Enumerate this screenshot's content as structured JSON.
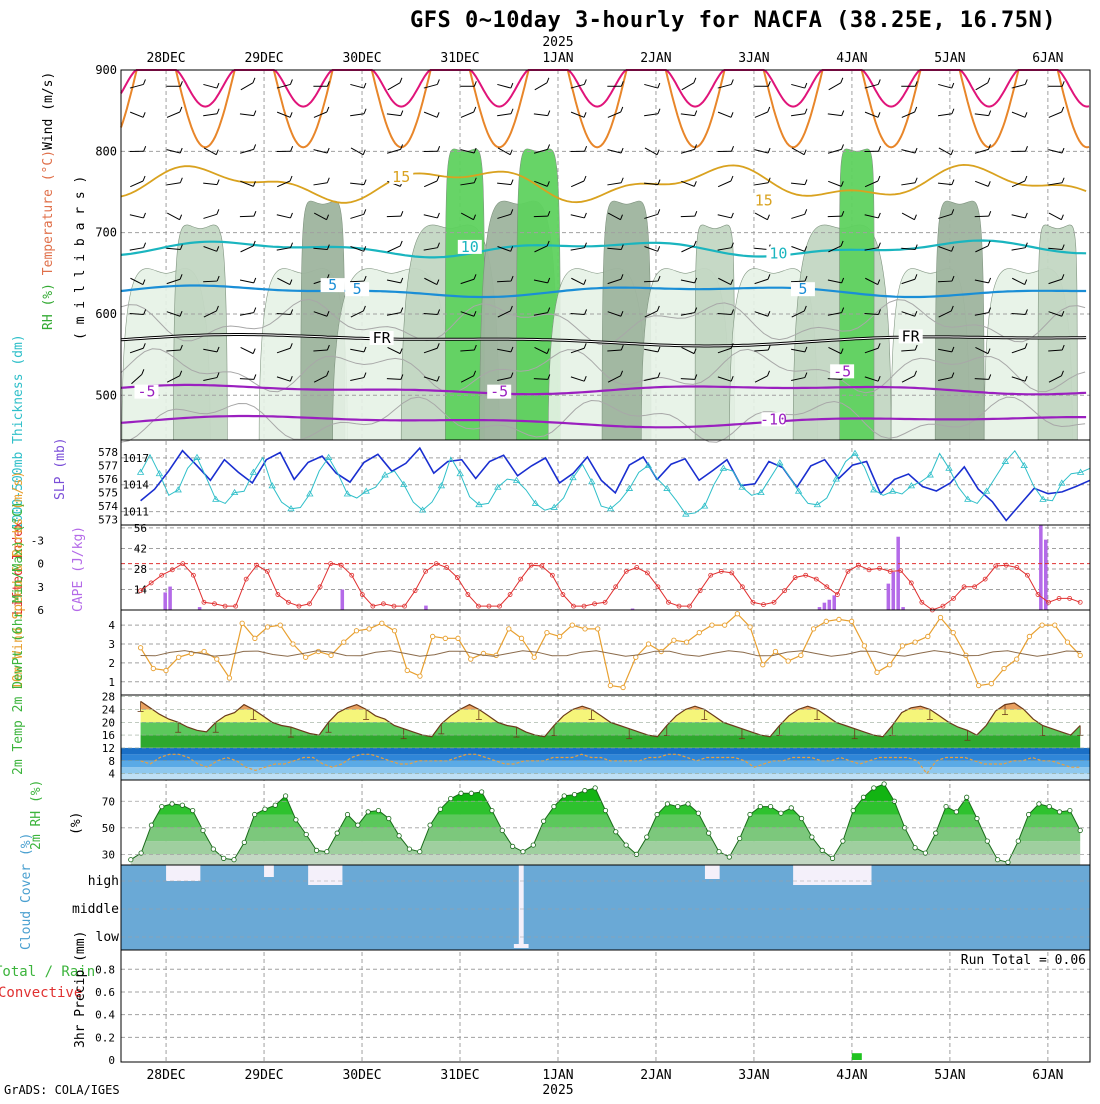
{
  "page": {
    "title": "GFS 0~10day 3-hourly for NACFA (38.25E, 16.75N)",
    "credit": "GrADS: COLA/IGES"
  },
  "colors": {
    "frame": "#000000",
    "grid": "#a0a0a0",
    "purple": "#9a1fbf",
    "cyan": "#1ab5bf",
    "skyblue": "#1a8ed6",
    "orange": "#e8862a",
    "gold": "#d9a21f",
    "magenta": "#e0147a",
    "rh_light": "#e6f2e6",
    "rh_mid": "#c3d7c3",
    "rh_dark": "#9fb59f",
    "rh_green": "#5fd25f",
    "slp": "#1a2fd0",
    "thick": "#2fbfc9",
    "lifted": "#e03030",
    "cape": "#b46ae8",
    "wind10": "#e8a030",
    "temp_green": "#3cb43c",
    "temp_yellow": "#f5f57a",
    "dew_blue": "#2a8ed8",
    "cloud": "#6aa9d6",
    "precip": "#1fc21f"
  },
  "chart_data": [
    {
      "type": "line",
      "title": "",
      "ylabel_parts": [
        "RH (%)",
        "Temperature (°C)",
        "Wind (m/s)"
      ],
      "ylabel_units": "( m i l l i b a r s )",
      "y_ticks": [
        500,
        600,
        700,
        800,
        900
      ],
      "ylim": [
        445,
        900
      ],
      "date_labels_top": [
        "28DEC",
        "29DEC",
        "30DEC",
        "31DEC",
        "1JAN",
        "2JAN",
        "3JAN",
        "4JAN",
        "5JAN",
        "6JAN"
      ],
      "year_label": "2025",
      "contour_labels": [
        {
          "text": "-10",
          "t": 6.2,
          "p": 468,
          "color": "purple"
        },
        {
          "text": "-5",
          "t": -0.2,
          "p": 502,
          "color": "purple"
        },
        {
          "text": "-5",
          "t": 3.4,
          "p": 502,
          "color": "purple"
        },
        {
          "text": "-5",
          "t": 6.9,
          "p": 527,
          "color": "purple"
        },
        {
          "text": "FR",
          "t": 2.2,
          "p": 568,
          "color": "black"
        },
        {
          "text": "FR",
          "t": 7.6,
          "p": 570,
          "color": "black"
        },
        {
          "text": "5",
          "t": 1.95,
          "p": 628,
          "color": "skyblue"
        },
        {
          "text": "5",
          "t": 6.5,
          "p": 628,
          "color": "skyblue"
        },
        {
          "text": "10",
          "t": 3.1,
          "p": 680,
          "color": "cyan"
        },
        {
          "text": "10",
          "t": 6.25,
          "p": 672,
          "color": "cyan"
        },
        {
          "text": "15",
          "t": 2.4,
          "p": 766,
          "color": "gold"
        },
        {
          "text": "15",
          "t": 6.1,
          "p": 737,
          "color": "gold"
        },
        {
          "text": "5",
          "t": 1.7,
          "p": 633,
          "color": "skyblue"
        }
      ]
    },
    {
      "type": "line",
      "ylabel_left": "1000-500mb Thickness (dm)",
      "ylabel_right": "SLP (mb)",
      "y_ticks_left": [
        573,
        574,
        575,
        576,
        577,
        578
      ],
      "y_ticks_right": [
        1011,
        1014,
        1017
      ],
      "series": [
        {
          "name": "SLP (mb)",
          "color": "slp",
          "values": [
            1012.2,
            1013.5,
            1015.5,
            1017.8,
            1016.2,
            1014.5,
            1016.8,
            1015.4,
            1014.2,
            1016.8,
            1017.6,
            1014.6,
            1016.5,
            1017.2,
            1015.3,
            1014.3,
            1016.5,
            1017.4,
            1015.5,
            1016.4,
            1018.1,
            1015.3,
            1016.6,
            1016.8,
            1014.7,
            1016.6,
            1017.3,
            1015.0,
            1016.1,
            1017.0,
            1014.2,
            1015.3,
            1017.1,
            1014.5,
            1013.1,
            1016.2,
            1017.1,
            1014.6,
            1016.3,
            1016.9,
            1014.5,
            1015.6,
            1016.8,
            1013.9,
            1014.1,
            1016.6,
            1015.9,
            1013.7,
            1016.1,
            1016.8,
            1014.7,
            1016.2,
            1016.6,
            1013.0,
            1014.6,
            1015.2,
            1013.8,
            1013.3,
            1014.2,
            1016.0,
            1013.5,
            1012.1,
            1010.0,
            1011.8,
            1013.6,
            1013.0,
            1013.2,
            1013.8,
            1014.5
          ]
        },
        {
          "name": "1000-500mb Thickness (dm)",
          "color": "thick",
          "values": [
            576.5,
            577.8,
            576.4,
            574.8,
            575.2,
            576.8,
            577.6,
            576.1,
            574.5,
            574.2,
            575.0,
            575.1,
            576.5,
            577.6,
            575.5,
            574.3,
            573.8,
            573.9,
            574.9,
            576.6,
            577.6,
            576.4,
            574.9,
            574.6,
            575.1,
            575.4,
            576.3,
            576.6,
            575.6,
            574.3,
            573.7,
            574.3,
            575.5,
            577.6,
            576.4,
            574.7,
            574.1,
            574.2,
            575.4,
            576.0,
            575.9,
            575.2,
            574.2,
            573.7,
            573.9,
            574.6,
            576.1,
            577.1,
            575.8,
            574.0,
            573.8,
            574.4,
            575.3,
            576.5,
            577.0,
            576.0,
            575.3,
            574.4,
            573.4,
            573.5,
            574.0,
            575.6,
            576.8,
            576.6,
            575.4,
            574.8,
            575.0,
            576.1,
            577.2,
            576.2,
            575.1,
            574.2,
            574.1,
            574.6,
            576.0,
            577.3,
            577.9,
            576.9,
            575.2,
            574.8,
            575.1,
            574.9,
            575.5,
            575.8,
            576.3,
            577.9,
            576.8,
            575.4,
            574.5,
            574.2,
            575.1,
            576.2,
            577.3,
            578.1,
            577.0,
            575.5,
            574.5,
            574.4,
            575.7,
            576.4,
            576.5,
            576.8
          ]
        }
      ]
    },
    {
      "type": "bar",
      "ylabel_left": "Lifted Index",
      "ylabel_right": "CAPE (J/kg)",
      "y_ticks_left": [
        "-3",
        "0",
        "3",
        "6"
      ],
      "y_ticks_right": [
        14,
        28,
        42,
        56
      ],
      "cape_values": [
        0,
        0,
        0,
        0,
        0,
        12,
        16,
        0,
        0,
        0,
        0,
        0,
        2,
        0,
        0,
        0,
        0,
        0,
        0,
        0,
        0,
        0,
        0,
        0,
        0,
        0,
        0,
        0,
        0,
        0,
        0,
        0,
        0,
        0,
        0,
        0,
        0,
        0,
        0,
        0,
        0,
        14,
        0,
        0,
        0,
        0,
        0,
        0,
        0,
        0,
        0,
        0,
        0,
        0,
        0,
        0,
        0,
        0,
        3,
        0,
        0,
        0,
        0,
        0,
        0,
        0,
        0,
        0,
        0,
        0,
        0,
        0,
        0,
        0,
        0,
        0,
        0,
        0,
        0,
        0,
        0,
        0,
        0,
        0,
        0,
        0,
        0,
        0,
        0,
        0,
        0,
        0,
        0,
        0,
        0,
        0,
        0,
        0,
        0,
        0,
        1,
        0,
        0,
        0,
        0,
        0,
        0,
        0,
        0,
        0,
        0,
        0,
        0,
        0,
        0,
        0,
        0,
        0,
        0,
        0,
        0,
        0,
        0,
        0,
        0,
        0,
        0,
        0,
        0,
        0,
        0,
        0,
        0,
        0,
        0,
        0,
        0,
        0,
        2,
        5,
        7,
        10,
        0,
        0,
        0,
        0,
        0,
        0,
        0,
        0,
        0,
        0,
        18,
        26,
        50,
        2,
        0,
        0,
        0,
        0,
        0,
        0,
        0,
        0,
        0,
        0,
        0,
        0,
        0,
        0,
        0,
        0,
        0,
        0,
        0,
        0,
        0,
        0,
        0,
        0,
        0,
        0,
        0,
        58,
        48,
        0,
        0,
        0,
        0,
        0,
        0,
        0
      ],
      "lifted_values": [
        3.5,
        2.5,
        1.5,
        0.8,
        0,
        1.5,
        5,
        5.2,
        5.5,
        5.5,
        2,
        0.2,
        1,
        4,
        5,
        5.5,
        5.2,
        3,
        0,
        0.2,
        1.5,
        4,
        5.5,
        5.2,
        5.5,
        5.5,
        3.5,
        1,
        0,
        0.5,
        1.8,
        4,
        5.5,
        5.5,
        5.5,
        4,
        2,
        0.2,
        0.3,
        1.5,
        4,
        5.5,
        5.5,
        5.2,
        5,
        3,
        1,
        0.5,
        1.2,
        3,
        5,
        5.5,
        5.5,
        3.5,
        1.5,
        1,
        1.2,
        3,
        5,
        5.3,
        5,
        3.5,
        1.8,
        1.5,
        2,
        3,
        4,
        1,
        0.2,
        0.8,
        0.6,
        1,
        0.9,
        2.5,
        5,
        6,
        5.5,
        4.5,
        3,
        3,
        2,
        0.3,
        0.2,
        0.5,
        1.5,
        4,
        5,
        4.5,
        4.5,
        5
      ],
      "dashed_line": 0
    },
    {
      "type": "line",
      "ylabel_left": "10m Wind Speed & Barbs (m/s)",
      "y_ticks": [
        1,
        2,
        3,
        4
      ],
      "values": [
        2.8,
        1.7,
        1.6,
        2.3,
        2.5,
        2.6,
        2.2,
        1.2,
        4.1,
        3.3,
        3.9,
        4.0,
        3.0,
        2.3,
        2.6,
        2.4,
        3.1,
        3.7,
        3.8,
        4.1,
        3.7,
        1.6,
        1.3,
        3.4,
        3.3,
        3.3,
        2.2,
        2.5,
        2.4,
        3.8,
        3.3,
        2.3,
        3.6,
        3.4,
        4.0,
        3.8,
        3.8,
        0.8,
        0.7,
        2.3,
        3.0,
        2.6,
        3.2,
        3.1,
        3.6,
        4.0,
        4.0,
        4.6,
        3.9,
        1.9,
        2.6,
        2.1,
        2.4,
        3.8,
        4.2,
        4.3,
        4.2,
        2.9,
        1.5,
        1.9,
        2.9,
        3.1,
        3.4,
        4.4,
        3.6,
        2.4,
        0.8,
        0.9,
        1.7,
        2.2,
        3.4,
        4.0,
        4.0,
        3.1,
        2.4
      ]
    },
    {
      "type": "area",
      "ylabel_left": "2m Temp 2m DewPt (6hr Min/Max) (°C)",
      "y_ticks": [
        4,
        8,
        12,
        16,
        20,
        24,
        28
      ],
      "temp": [
        26.5,
        24.5,
        22.5,
        21,
        20,
        18.5,
        17.5,
        17,
        20,
        22,
        23,
        25.5,
        24,
        22,
        20,
        19,
        18.5,
        17.5,
        16.5,
        16,
        20,
        23,
        24.5,
        25.5,
        24,
        22,
        21,
        19,
        18,
        17,
        16,
        15.5,
        19.5,
        22,
        24,
        25.5,
        24,
        22,
        20,
        19,
        18.5,
        17,
        16,
        15.5,
        19,
        22,
        24,
        25,
        24,
        22,
        20,
        19,
        18,
        17,
        16,
        15.5,
        19,
        22,
        24,
        25,
        24,
        22,
        20,
        19,
        18,
        17,
        16,
        15.5,
        19,
        22,
        24,
        25,
        24,
        22,
        20,
        19,
        18,
        17,
        16,
        15.5,
        19,
        23,
        24.5,
        25,
        24,
        22,
        20,
        18.5,
        17.5,
        16,
        19,
        23.5,
        25.5,
        26,
        24,
        21,
        19,
        18,
        17,
        16,
        19
      ],
      "dewpt": [
        8,
        7,
        9,
        10,
        10,
        9,
        7,
        6,
        8,
        9,
        8,
        6,
        5,
        6,
        7,
        7,
        8,
        9,
        9,
        7,
        6,
        7,
        9,
        10,
        10,
        9,
        8,
        7,
        7,
        8,
        8,
        8,
        8,
        9,
        10,
        10,
        9,
        8,
        7,
        7,
        8,
        8,
        8,
        9,
        9,
        9,
        10,
        9,
        9,
        8,
        8,
        8,
        8,
        9,
        9,
        10,
        10,
        9,
        8,
        9,
        9,
        9,
        9,
        8,
        6,
        7,
        8,
        8,
        9,
        9,
        9,
        8,
        8,
        9,
        8,
        7,
        8,
        9,
        9,
        9,
        9,
        8,
        4,
        8,
        9,
        9,
        9,
        8,
        7,
        7,
        7,
        8,
        8,
        9,
        8,
        8,
        7,
        6,
        6
      ]
    },
    {
      "type": "area",
      "ylabel_left": "2m RH (%)",
      "y_ticks": [
        30,
        50,
        70
      ],
      "values": [
        26,
        31,
        52,
        66,
        68,
        67,
        63,
        48,
        34,
        27,
        26,
        39,
        60,
        64,
        67,
        74,
        56,
        45,
        33,
        32,
        46,
        60,
        52,
        62,
        63,
        57,
        44,
        34,
        32,
        52,
        64,
        72,
        76,
        76,
        77,
        63,
        48,
        36,
        32,
        37,
        55,
        66,
        74,
        75,
        78,
        80,
        63,
        47,
        37,
        30,
        43,
        60,
        68,
        66,
        68,
        61,
        46,
        32,
        28,
        42,
        60,
        66,
        66,
        61,
        65,
        57,
        43,
        33,
        27,
        40,
        63,
        73,
        80,
        83,
        70,
        50,
        35,
        31,
        46,
        66,
        62,
        73,
        57,
        40,
        26,
        24,
        40,
        60,
        68,
        66,
        62,
        63,
        48
      ]
    },
    {
      "type": "area",
      "ylabel_left": "Cloud Cover (%)",
      "level_labels": [
        "high",
        "middle",
        "low"
      ]
    },
    {
      "type": "bar",
      "ylabel_left": "Total / Rain",
      "ylabel_left2": "Convective",
      "ylabel_units": "3hr Precip (mm)",
      "y_ticks": [
        0,
        0.2,
        0.4,
        0.6,
        0.8
      ],
      "run_total": "Run Total = 0.06",
      "bars": [
        {
          "t": 7.05,
          "value": 0.06
        }
      ],
      "date_labels_bottom": [
        "28DEC",
        "29DEC",
        "30DEC",
        "31DEC",
        "1JAN",
        "2JAN",
        "3JAN",
        "4JAN",
        "5JAN",
        "6JAN"
      ],
      "year_label": "2025"
    }
  ]
}
